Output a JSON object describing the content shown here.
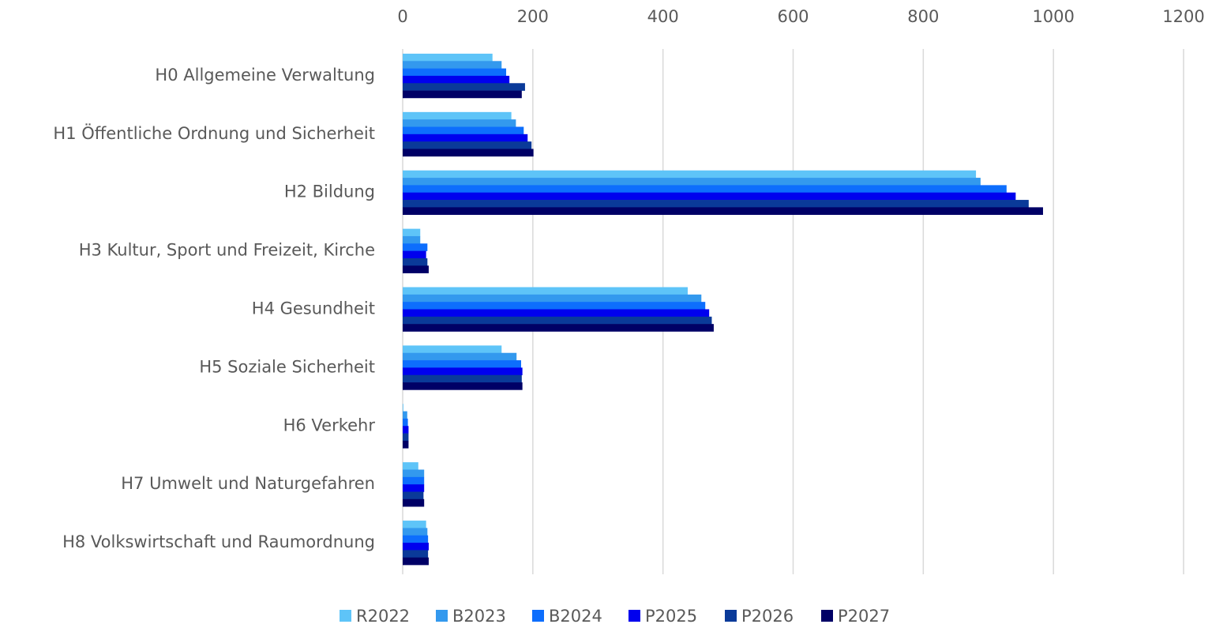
{
  "chart_data": {
    "type": "hbar",
    "categories": [
      "H0 Allgemeine Verwaltung",
      "H1 Öffentliche Ordnung und Sicherheit",
      "H2 Bildung",
      "H3 Kultur, Sport und Freizeit, Kirche",
      "H4 Gesundheit",
      "H5 Soziale Sicherheit",
      "H6 Verkehr",
      "H7 Umwelt und Naturgefahren",
      "H8 Volkswirtschaft und Raumordnung"
    ],
    "series": [
      {
        "name": "R2022",
        "color": "#5ec4f8",
        "values": [
          138,
          167,
          881,
          27,
          438,
          152,
          1,
          24,
          36
        ]
      },
      {
        "name": "B2023",
        "color": "#3399ee",
        "values": [
          152,
          174,
          888,
          27,
          459,
          175,
          7,
          33,
          38
        ]
      },
      {
        "name": "B2024",
        "color": "#0d6efd",
        "values": [
          159,
          186,
          928,
          38,
          465,
          182,
          8,
          33,
          39
        ]
      },
      {
        "name": "P2025",
        "color": "#0000ee",
        "values": [
          164,
          192,
          942,
          36,
          471,
          184,
          9,
          33,
          40
        ]
      },
      {
        "name": "P2026",
        "color": "#0a3a99",
        "values": [
          188,
          198,
          962,
          38,
          475,
          183,
          9,
          32,
          39
        ]
      },
      {
        "name": "P2027",
        "color": "#000066",
        "values": [
          183,
          201,
          984,
          40,
          478,
          184,
          9,
          33,
          40
        ]
      }
    ],
    "xlim": [
      0,
      1200
    ],
    "xticks": [
      0,
      200,
      400,
      600,
      800,
      1000,
      1200
    ],
    "grid": true,
    "legend": "bottom"
  }
}
